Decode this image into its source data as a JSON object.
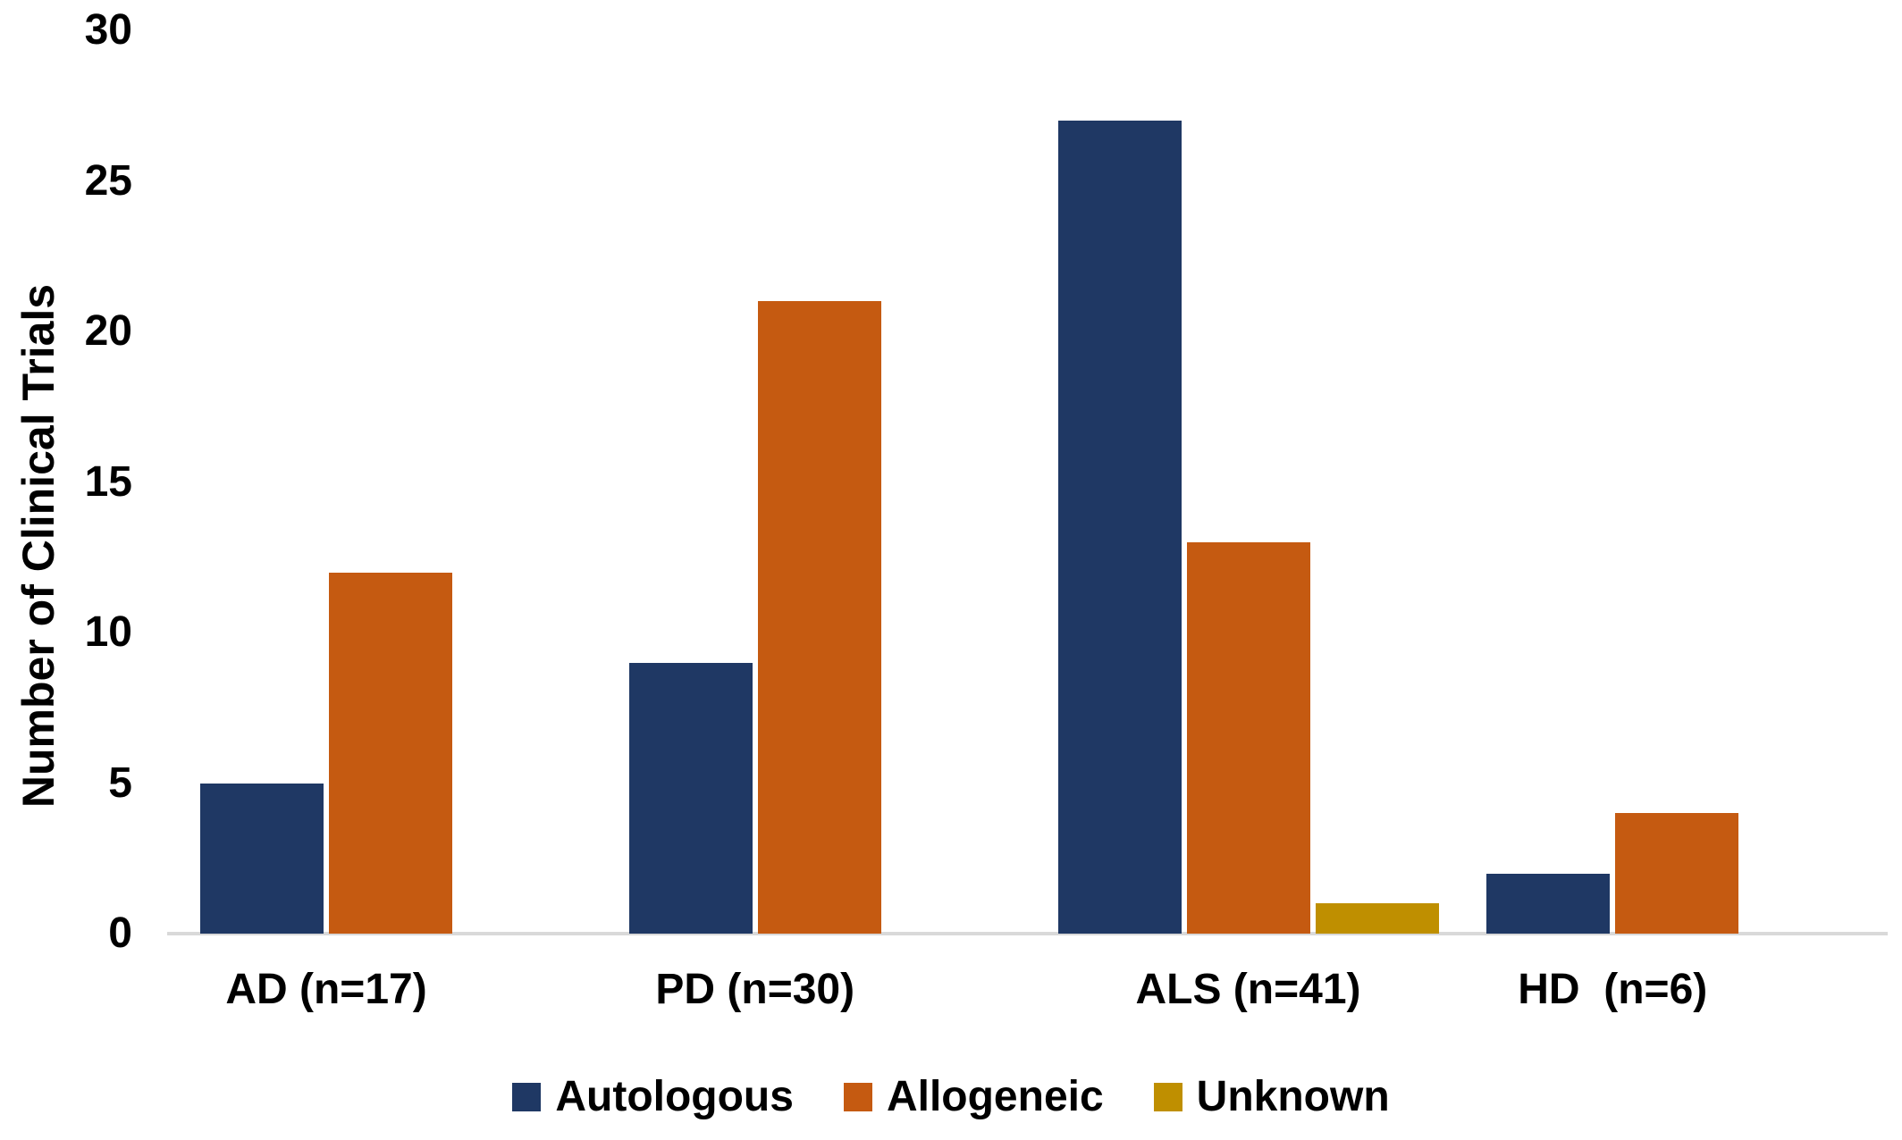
{
  "chart_data": {
    "type": "bar",
    "title": "",
    "xlabel": "",
    "ylabel": "Number of Clinical Trials",
    "ylim": [
      0,
      30
    ],
    "yticks": [
      0,
      5,
      10,
      15,
      20,
      25,
      30
    ],
    "grid": false,
    "legend_position": "bottom",
    "categories": [
      "AD (n=17)",
      "PD (n=30)",
      "ALS (n=41)",
      "HD  (n=6)"
    ],
    "series": [
      {
        "name": "Autologous",
        "color": "#1F3864",
        "values": [
          5,
          9,
          27,
          2
        ]
      },
      {
        "name": "Allogeneic",
        "color": "#C55A11",
        "values": [
          12,
          21,
          13,
          4
        ]
      },
      {
        "name": "Unknown",
        "color": "#BF8F00",
        "values": [
          0,
          0,
          1,
          0
        ]
      }
    ],
    "axis_line_color": "#D9D9D9",
    "text_color": "#000000",
    "background": "#FFFFFF"
  }
}
